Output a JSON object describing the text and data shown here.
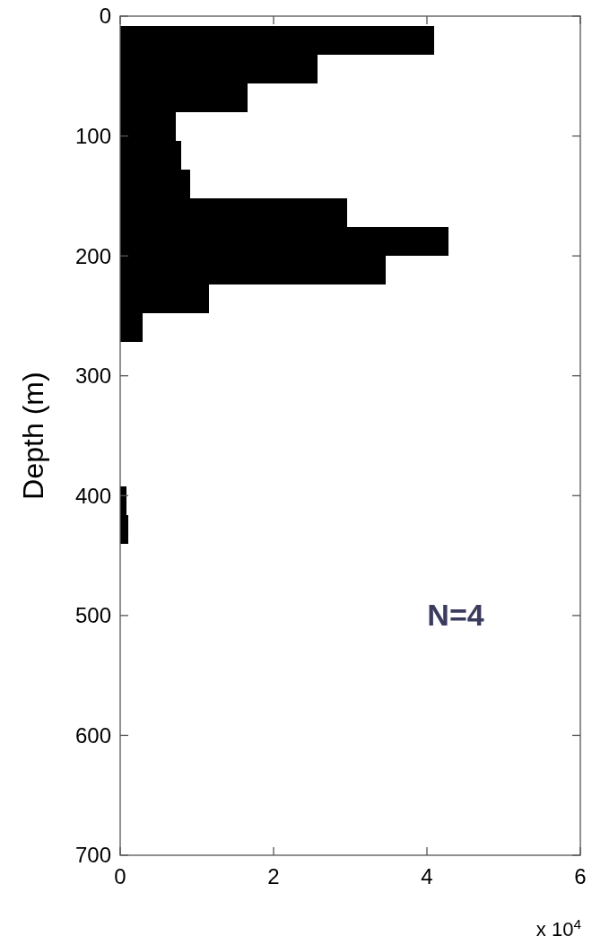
{
  "chart_data": {
    "type": "histogram",
    "orientation": "horizontal",
    "ylabel": "Depth (m)",
    "bins": [
      8,
      32,
      56,
      80,
      104,
      128,
      152,
      176,
      200,
      224,
      248,
      272,
      296,
      320,
      344,
      368,
      392,
      416,
      440
    ],
    "values": [
      4.09,
      2.57,
      1.66,
      0.73,
      0.8,
      0.91,
      2.96,
      4.28,
      3.46,
      1.16,
      0.29,
      0,
      0,
      0,
      0,
      0,
      0.08,
      0.1
    ],
    "color": "#000000",
    "ylim": [
      700,
      0
    ],
    "yticks": [
      0,
      100,
      200,
      300,
      400,
      500,
      600,
      700
    ],
    "xlim": [
      0,
      6
    ],
    "xticks": [
      0,
      2,
      4,
      6
    ],
    "annotations": [
      "N=4",
      "x 10$^{4}$"
    ],
    "grid": false
  }
}
